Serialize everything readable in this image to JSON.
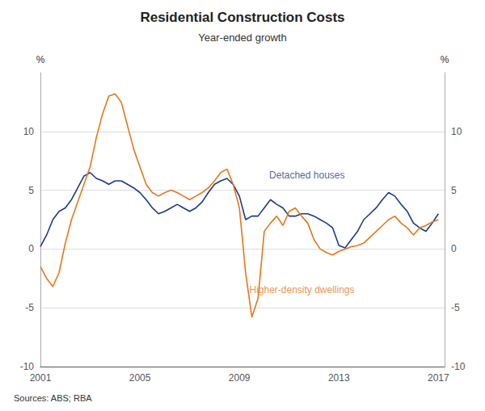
{
  "chart_data": {
    "type": "line",
    "title": "Residential Construction Costs",
    "subtitle": "Year-ended growth",
    "source": "Sources: ABS; RBA",
    "ylabel": "%",
    "y2label": "%",
    "xlim": [
      2001.0,
      2017.25
    ],
    "xticks": [
      2001,
      2005,
      2009,
      2013,
      2017
    ],
    "ylim": [
      -10,
      15
    ],
    "yticks": [
      -10,
      -5,
      0,
      5,
      10
    ],
    "y2lim": [
      -10,
      15
    ],
    "y2ticks": [
      -10,
      -5,
      0,
      5,
      10
    ],
    "grid": true,
    "x": [
      2001.0,
      2001.25,
      2001.5,
      2001.75,
      2002.0,
      2002.25,
      2002.5,
      2002.75,
      2003.0,
      2003.25,
      2003.5,
      2003.75,
      2004.0,
      2004.25,
      2004.5,
      2004.75,
      2005.0,
      2005.25,
      2005.5,
      2005.75,
      2006.0,
      2006.25,
      2006.5,
      2006.75,
      2007.0,
      2007.25,
      2007.5,
      2007.75,
      2008.0,
      2008.25,
      2008.5,
      2008.75,
      2009.0,
      2009.25,
      2009.5,
      2009.75,
      2010.0,
      2010.25,
      2010.5,
      2010.75,
      2011.0,
      2011.25,
      2011.5,
      2011.75,
      2012.0,
      2012.25,
      2012.5,
      2012.75,
      2013.0,
      2013.25,
      2013.5,
      2013.75,
      2014.0,
      2014.25,
      2014.5,
      2014.75,
      2015.0,
      2015.25,
      2015.5,
      2015.75,
      2016.0,
      2016.25,
      2016.5,
      2016.75,
      2017.0
    ],
    "series": [
      {
        "name": "Detached houses",
        "color": "#1a3a8a",
        "values": [
          0.2,
          1.2,
          2.5,
          3.2,
          3.5,
          4.2,
          5.2,
          6.2,
          6.5,
          6.0,
          5.8,
          5.5,
          5.8,
          5.8,
          5.5,
          5.2,
          4.8,
          4.2,
          3.5,
          3.0,
          3.2,
          3.5,
          3.8,
          3.5,
          3.2,
          3.5,
          4.0,
          4.8,
          5.5,
          5.8,
          6.0,
          5.5,
          4.5,
          2.5,
          2.8,
          2.8,
          3.5,
          4.2,
          3.8,
          3.5,
          2.8,
          2.8,
          3.0,
          3.0,
          2.8,
          2.5,
          2.2,
          1.8,
          0.3,
          0.1,
          0.8,
          1.5,
          2.5,
          3.0,
          3.5,
          4.2,
          4.8,
          4.5,
          3.8,
          3.2,
          2.2,
          1.8,
          1.5,
          2.2,
          3.0
        ]
      },
      {
        "name": "Higher-density dwellings",
        "color": "#e8761a",
        "values": [
          -1.5,
          -2.5,
          -3.2,
          -2.0,
          0.5,
          2.5,
          4.0,
          5.5,
          7.0,
          9.5,
          11.5,
          13.0,
          13.2,
          12.5,
          10.5,
          8.5,
          7.0,
          5.5,
          4.8,
          4.5,
          4.8,
          5.0,
          4.8,
          4.5,
          4.2,
          4.5,
          4.8,
          5.2,
          5.8,
          6.5,
          6.8,
          5.5,
          3.5,
          -2.0,
          -5.8,
          -4.2,
          1.5,
          2.2,
          2.8,
          2.0,
          3.2,
          3.5,
          2.8,
          2.2,
          0.8,
          0.0,
          -0.3,
          -0.5,
          -0.2,
          0.0,
          0.2,
          0.3,
          0.5,
          1.0,
          1.5,
          2.0,
          2.5,
          2.8,
          2.2,
          1.8,
          1.2,
          1.8,
          2.0,
          2.3,
          2.5
        ]
      }
    ],
    "annotations": [
      {
        "text": "Detached houses",
        "x": 2010.2,
        "y": 6.3,
        "color": "#1a3a8a"
      },
      {
        "text": "Higher-density dwellings",
        "x": 2009.4,
        "y": -3.5,
        "color": "#e8761a"
      }
    ]
  }
}
